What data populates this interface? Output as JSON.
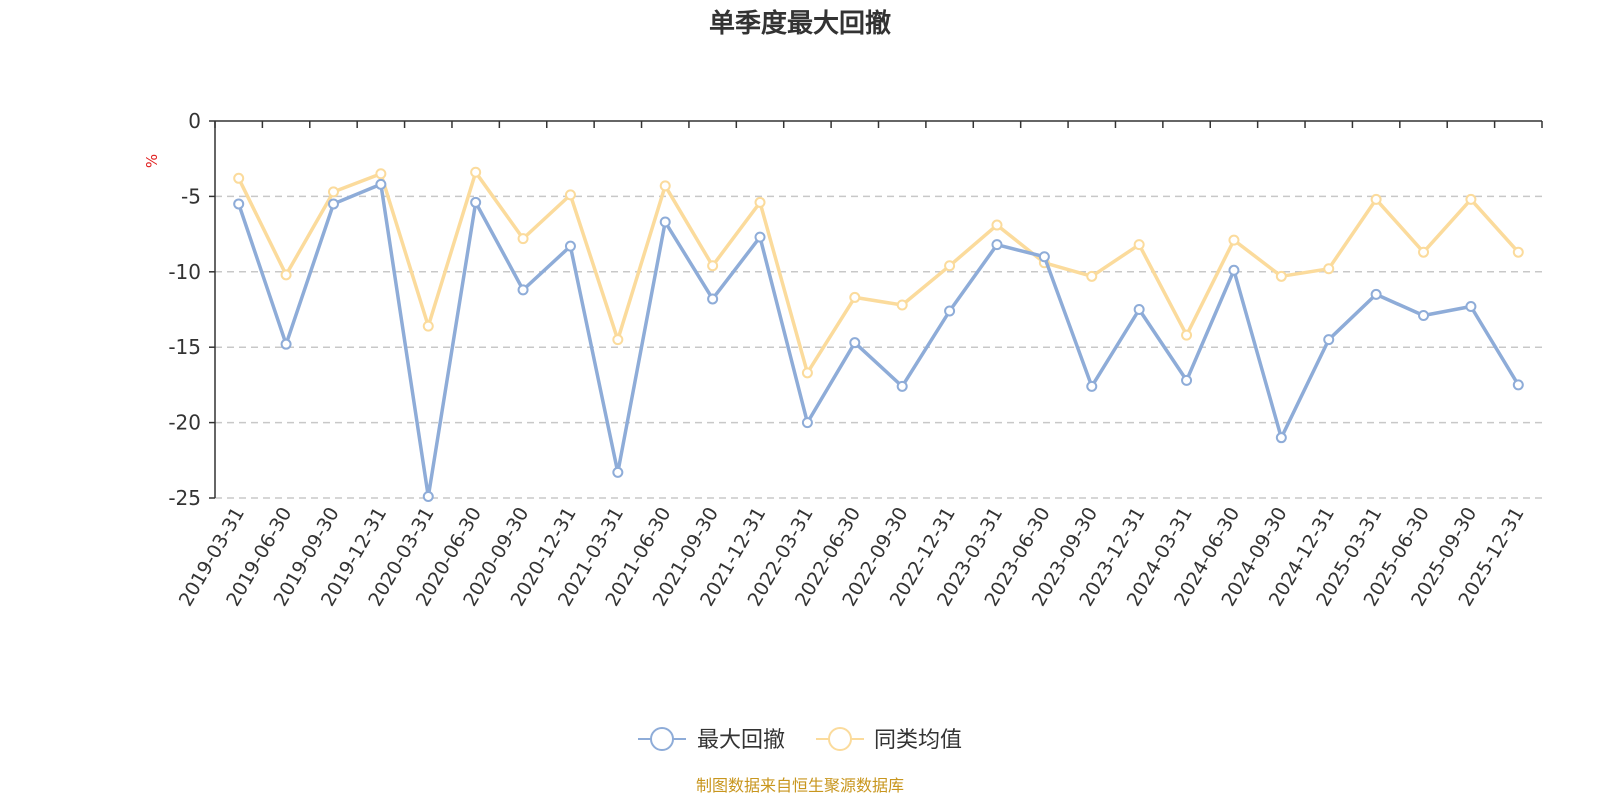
{
  "chart_data": {
    "type": "line",
    "title": "单季度最大回撤",
    "ylabel": "%",
    "xlabel": "",
    "ylim": [
      -25,
      0
    ],
    "yticks": [
      0,
      -5,
      -10,
      -15,
      -20,
      -25
    ],
    "grid": true,
    "legend_position": "bottom-center",
    "categories": [
      "2019-03-31",
      "2019-06-30",
      "2019-09-30",
      "2019-12-31",
      "2020-03-31",
      "2020-06-30",
      "2020-09-30",
      "2020-12-31",
      "2021-03-31",
      "2021-06-30",
      "2021-09-30",
      "2021-12-31",
      "2022-03-31",
      "2022-06-30",
      "2022-09-30",
      "2022-12-31",
      "2023-03-31",
      "2023-06-30",
      "2023-09-30",
      "2023-12-31",
      "2024-03-31",
      "2024-06-30",
      "2024-09-30",
      "2024-12-31",
      "2025-03-31",
      "2025-06-30",
      "2025-09-30",
      "2025-12-31"
    ],
    "series": [
      {
        "name": "最大回撤",
        "color": "#8eacd8",
        "values": [
          -5.5,
          -14.8,
          -5.5,
          -4.2,
          -24.9,
          -5.4,
          -11.2,
          -8.3,
          -23.3,
          -6.7,
          -11.8,
          -7.7,
          -20.0,
          -14.7,
          -17.6,
          -12.6,
          -8.2,
          -9.0,
          -17.6,
          -12.5,
          -17.2,
          -9.9,
          -21.0,
          -14.5,
          -11.5,
          -12.9,
          -12.3,
          -17.5
        ]
      },
      {
        "name": "同类均值",
        "color": "#fbdb9c",
        "values": [
          -3.8,
          -10.2,
          -4.7,
          -3.5,
          -13.6,
          -3.4,
          -7.8,
          -4.9,
          -14.5,
          -4.3,
          -9.6,
          -5.4,
          -16.7,
          -11.7,
          -12.2,
          -9.6,
          -6.9,
          -9.4,
          -10.3,
          -8.2,
          -14.2,
          -7.9,
          -10.3,
          -9.8,
          -5.2,
          -8.7,
          -5.2,
          -8.7
        ]
      }
    ]
  },
  "source_note": "制图数据来自恒生聚源数据库",
  "colors": {
    "axis": "#333333",
    "grid": "#c8c8c8",
    "unit": "#e02020",
    "source": "#c8961e"
  }
}
